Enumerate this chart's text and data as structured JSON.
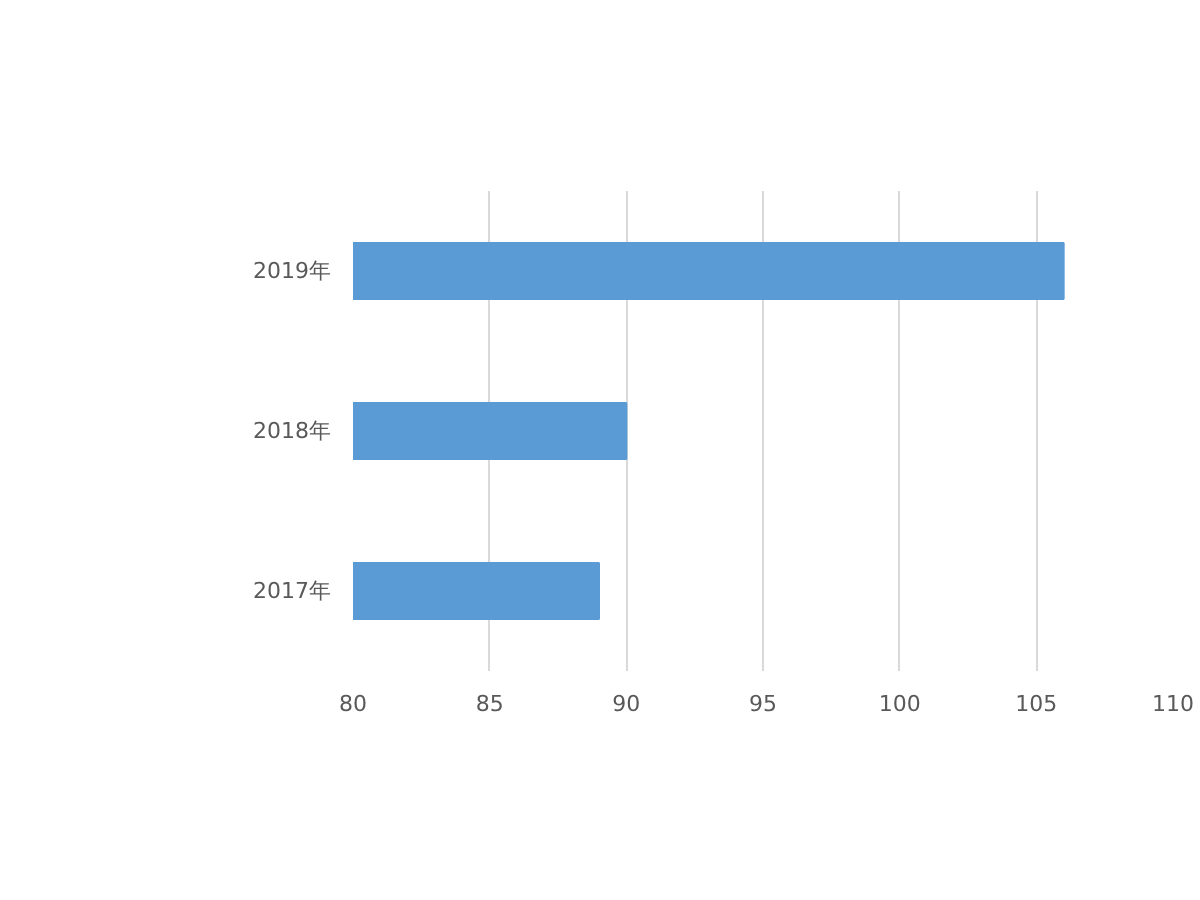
{
  "chart_data": {
    "type": "bar",
    "orientation": "horizontal",
    "categories": [
      "2019年",
      "2018年",
      "2017年"
    ],
    "values": [
      106,
      90,
      89
    ],
    "color": "#5b9bd5",
    "xlim": [
      80,
      110
    ],
    "xticks": [
      80,
      85,
      90,
      95,
      100,
      105,
      110
    ],
    "grid": "x"
  }
}
